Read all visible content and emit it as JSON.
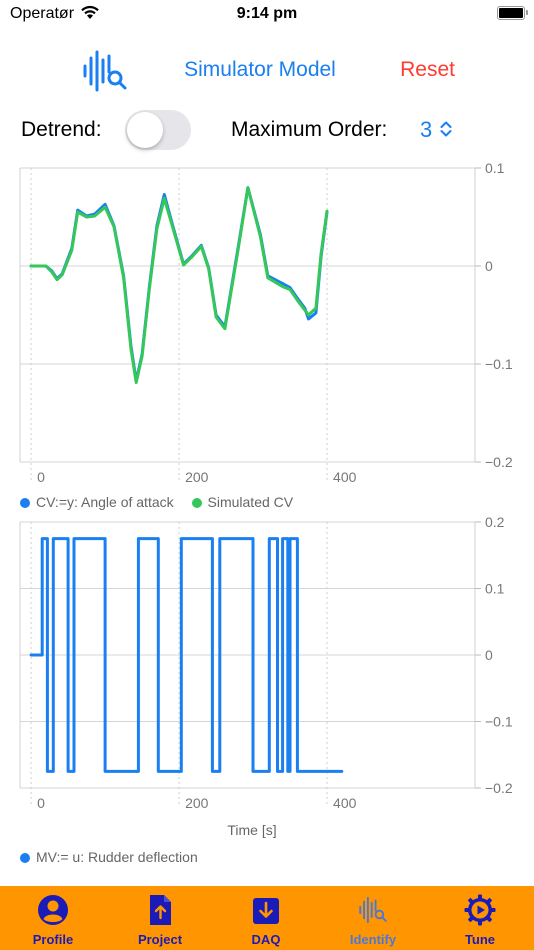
{
  "status_bar": {
    "carrier": "Operatør",
    "time": "9:14 pm"
  },
  "toolbar": {
    "title": "Simulator Model",
    "reset_label": "Reset",
    "logo_icon": "waveform-search-icon"
  },
  "controls": {
    "detrend_label": "Detrend:",
    "detrend_on": false,
    "max_order_label": "Maximum Order:",
    "max_order_value": "3"
  },
  "colors": {
    "accent": "#1a7ff0",
    "reset": "#ff3b30",
    "cv": "#1a7ff0",
    "sim": "#34c759",
    "tabbar": "#ff9500",
    "tab_label": "#1b1bb8"
  },
  "chart_data": [
    {
      "type": "line",
      "x_ticks": [
        "0",
        "200",
        "400"
      ],
      "y_ticks": [
        "0.1",
        "0",
        "−0.1",
        "−0.2"
      ],
      "xlim": [
        -15,
        600
      ],
      "ylim": [
        -0.2,
        0.1
      ],
      "legend": [
        "CV:=y: Angle of attack",
        "Simulated CV"
      ],
      "series": [
        {
          "name": "CV:=y: Angle of attack",
          "color": "#1a7ff0",
          "x": [
            0,
            20,
            28,
            35,
            42,
            55,
            63,
            75,
            86,
            100,
            112,
            125,
            135,
            142,
            150,
            160,
            170,
            180,
            190,
            206,
            217,
            230,
            240,
            250,
            262,
            280,
            293,
            310,
            320,
            340,
            350,
            360,
            370,
            375,
            385,
            392,
            400
          ],
          "y": [
            0,
            0,
            -0.005,
            -0.013,
            -0.008,
            0.018,
            0.057,
            0.051,
            0.053,
            0.063,
            0.041,
            -0.01,
            -0.082,
            -0.117,
            -0.09,
            -0.02,
            0.041,
            0.073,
            0.045,
            0.002,
            0.01,
            0.021,
            -0.002,
            -0.05,
            -0.062,
            0.02,
            0.08,
            0.032,
            -0.01,
            -0.018,
            -0.022,
            -0.033,
            -0.043,
            -0.054,
            -0.048,
            0.01,
            0.055
          ]
        },
        {
          "name": "Simulated CV",
          "color": "#34c759",
          "x": [
            0,
            20,
            28,
            35,
            42,
            55,
            63,
            75,
            86,
            100,
            112,
            125,
            135,
            142,
            150,
            160,
            170,
            180,
            190,
            206,
            217,
            230,
            240,
            250,
            262,
            280,
            293,
            310,
            320,
            340,
            350,
            360,
            370,
            375,
            385,
            392,
            400
          ],
          "y": [
            0,
            0,
            -0.006,
            -0.014,
            -0.009,
            0.016,
            0.055,
            0.05,
            0.051,
            0.06,
            0.04,
            -0.012,
            -0.085,
            -0.119,
            -0.092,
            -0.022,
            0.038,
            0.069,
            0.043,
            0.001,
            0.009,
            0.02,
            -0.003,
            -0.052,
            -0.064,
            0.018,
            0.08,
            0.03,
            -0.012,
            -0.021,
            -0.024,
            -0.035,
            -0.045,
            -0.05,
            -0.043,
            0.013,
            0.056
          ]
        }
      ]
    },
    {
      "type": "line",
      "x_ticks": [
        "0",
        "200",
        "400"
      ],
      "y_ticks": [
        "0.2",
        "0.1",
        "0",
        "−0.1",
        "−0.2"
      ],
      "xlim": [
        -15,
        600
      ],
      "ylim": [
        -0.2,
        0.2
      ],
      "xlabel": "Time [s]",
      "legend": [
        "MV:= u: Rudder deflection"
      ],
      "series": [
        {
          "name": "MV:= u: Rudder deflection",
          "color": "#1a7ff0",
          "x": [
            0,
            15,
            15,
            22,
            22,
            30,
            30,
            50,
            50,
            58,
            58,
            100,
            100,
            145,
            145,
            172,
            172,
            203,
            203,
            245,
            245,
            255,
            255,
            300,
            300,
            322,
            322,
            333,
            333,
            340,
            340,
            347,
            347,
            350,
            350,
            360,
            360,
            388,
            388,
            420
          ],
          "y": [
            0,
            0,
            0.175,
            0.175,
            -0.175,
            -0.175,
            0.175,
            0.175,
            -0.175,
            -0.175,
            0.175,
            0.175,
            -0.175,
            -0.175,
            0.175,
            0.175,
            -0.175,
            -0.175,
            0.175,
            0.175,
            -0.175,
            -0.175,
            0.175,
            0.175,
            -0.175,
            -0.175,
            0.175,
            0.175,
            -0.175,
            -0.175,
            0.175,
            0.175,
            -0.175,
            -0.175,
            0.175,
            0.175,
            -0.175,
            -0.175,
            -0.175,
            -0.175
          ]
        }
      ]
    }
  ],
  "tabs": [
    {
      "label": "Profile",
      "icon": "person-circle-icon"
    },
    {
      "label": "Project",
      "icon": "document-upload-icon"
    },
    {
      "label": "DAQ",
      "icon": "download-box-icon"
    },
    {
      "label": "Identify",
      "icon": "waveform-search-icon",
      "active": true
    },
    {
      "label": "Tune",
      "icon": "gear-play-icon"
    }
  ]
}
